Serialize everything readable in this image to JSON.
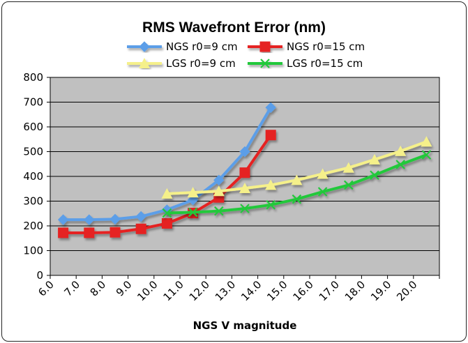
{
  "chart_data": {
    "type": "line",
    "title": "RMS Wavefront Error (nm)",
    "xlabel": "NGS V magnitude",
    "ylabel": "",
    "ylim": [
      0,
      800
    ],
    "y_ticks": [
      0,
      100,
      200,
      300,
      400,
      500,
      600,
      700,
      800
    ],
    "x_ticks": [
      "6.0",
      "7.0",
      "8.0",
      "9.0",
      "10.0",
      "11.0",
      "12.0",
      "13.0",
      "14.0",
      "15.0",
      "16.0",
      "17.0",
      "18.0",
      "19.0",
      "20.0"
    ],
    "grid": "horizontal",
    "plot_background": "#c0c0c0",
    "legend_position": "top",
    "series": [
      {
        "name": "NGS r0=9 cm",
        "color": "#5b9ee8",
        "marker": "diamond",
        "points": [
          [
            6.5,
            225
          ],
          [
            7.5,
            225
          ],
          [
            8.5,
            227
          ],
          [
            9.5,
            238
          ],
          [
            10.5,
            265
          ],
          [
            11.5,
            305
          ],
          [
            12.5,
            385
          ],
          [
            13.5,
            500
          ],
          [
            14.5,
            678
          ]
        ]
      },
      {
        "name": "NGS r0=15 cm",
        "color": "#e52020",
        "marker": "square",
        "points": [
          [
            6.5,
            172
          ],
          [
            7.5,
            172
          ],
          [
            8.5,
            174
          ],
          [
            9.5,
            188
          ],
          [
            10.5,
            210
          ],
          [
            11.5,
            252
          ],
          [
            12.5,
            315
          ],
          [
            13.5,
            415
          ],
          [
            14.5,
            567
          ]
        ]
      },
      {
        "name": "LGS r0=9 cm",
        "color": "#f5f08a",
        "marker": "triangle",
        "points": [
          [
            10.5,
            330
          ],
          [
            11.5,
            335
          ],
          [
            12.5,
            340
          ],
          [
            13.5,
            352
          ],
          [
            14.5,
            365
          ],
          [
            15.5,
            385
          ],
          [
            16.5,
            410
          ],
          [
            17.5,
            435
          ],
          [
            18.5,
            468
          ],
          [
            19.5,
            502
          ],
          [
            20.5,
            540
          ]
        ]
      },
      {
        "name": "LGS r0=15 cm",
        "color": "#22c83a",
        "marker": "x",
        "points": [
          [
            10.5,
            252
          ],
          [
            11.5,
            255
          ],
          [
            12.5,
            260
          ],
          [
            13.5,
            270
          ],
          [
            14.5,
            285
          ],
          [
            15.5,
            308
          ],
          [
            16.5,
            338
          ],
          [
            17.5,
            365
          ],
          [
            18.5,
            405
          ],
          [
            19.5,
            448
          ],
          [
            20.5,
            487
          ]
        ]
      }
    ]
  }
}
